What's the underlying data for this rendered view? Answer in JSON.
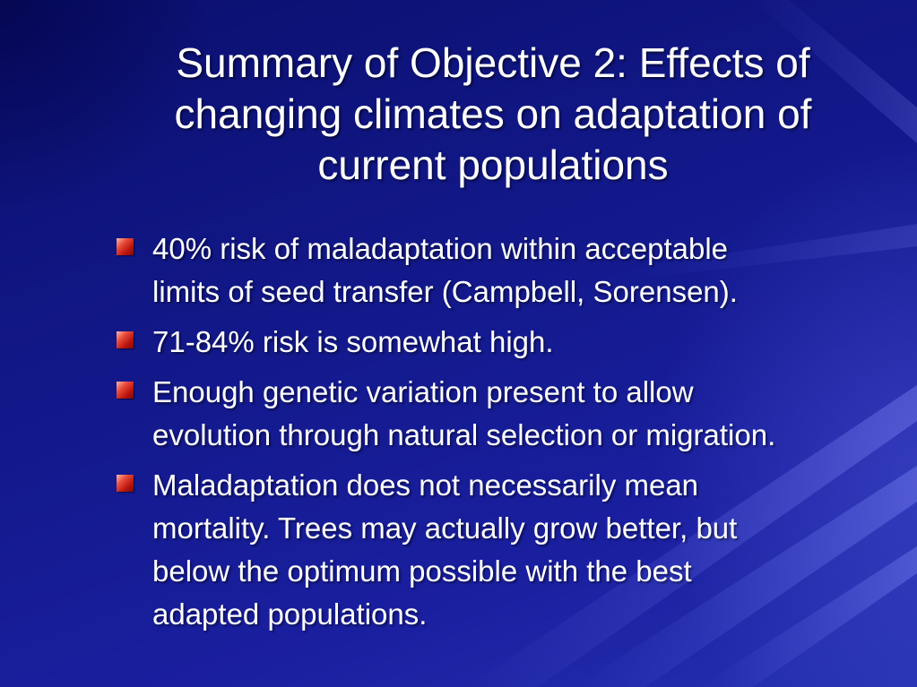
{
  "slide": {
    "title_lines": [
      "Summary of Objective 2: Effects of",
      "changing climates on adaptation of",
      "current populations"
    ],
    "bullets": [
      {
        "lines": [
          "40% risk of maladaptation within acceptable",
          "limits of seed transfer (Campbell, Sorensen)."
        ]
      },
      {
        "lines": [
          "71-84% risk is somewhat high."
        ]
      },
      {
        "lines": [
          "Enough genetic variation present to allow",
          "evolution through natural selection or migration."
        ]
      },
      {
        "lines": [
          "Maladaptation does not necessarily mean",
          "mortality.  Trees may actually grow better, but",
          "below the optimum possible with the best",
          "adapted populations."
        ]
      }
    ],
    "bullet_icon": "square-bullet-icon",
    "colors": {
      "background": "#13198c",
      "text": "#ffffff",
      "bullet": "#d42a1c"
    }
  }
}
